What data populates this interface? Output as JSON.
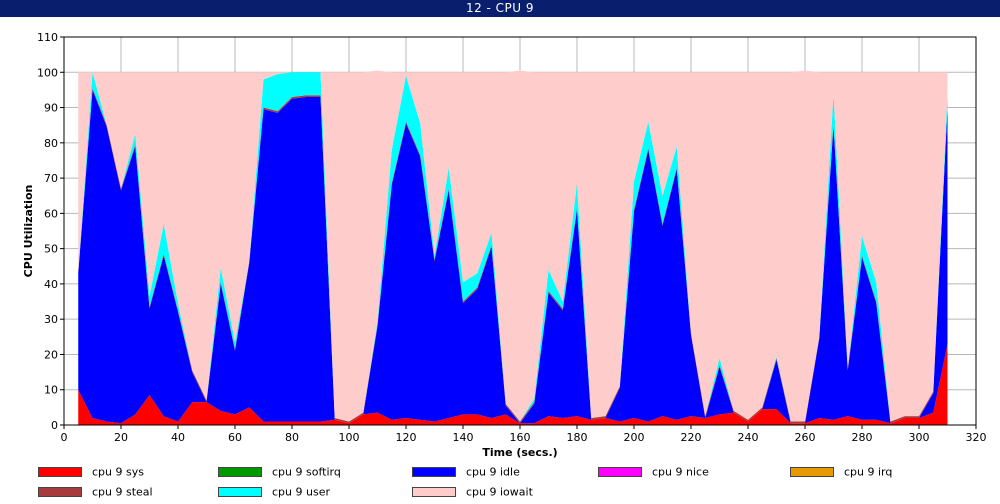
{
  "window": {
    "title": "12 - CPU 9"
  },
  "chart_data": {
    "type": "area",
    "stacked": true,
    "xlabel": "Time (secs.)",
    "ylabel": "CPU Utilization",
    "xlim": [
      0,
      320
    ],
    "ylim": [
      0,
      110
    ],
    "xticks": [
      0,
      20,
      40,
      60,
      80,
      100,
      120,
      140,
      160,
      180,
      200,
      220,
      240,
      260,
      280,
      300,
      320
    ],
    "yticks": [
      0,
      10,
      20,
      30,
      40,
      50,
      60,
      70,
      80,
      90,
      100,
      110
    ],
    "grid": true,
    "legend_position": "bottom",
    "x": [
      5,
      10,
      15,
      20,
      25,
      30,
      35,
      40,
      45,
      50,
      55,
      60,
      65,
      70,
      75,
      80,
      85,
      90,
      95,
      100,
      105,
      110,
      115,
      120,
      125,
      130,
      135,
      140,
      145,
      150,
      155,
      160,
      165,
      170,
      175,
      180,
      185,
      190,
      195,
      200,
      205,
      210,
      215,
      220,
      225,
      230,
      235,
      240,
      245,
      250,
      255,
      260,
      265,
      270,
      275,
      280,
      285,
      290,
      295,
      300,
      305,
      310
    ],
    "series": [
      {
        "name": "cpu 9 sys",
        "color": "#ff0000",
        "values": [
          10,
          2,
          1,
          0.5,
          3,
          8.5,
          2.5,
          1,
          6.5,
          6.5,
          4,
          3,
          5,
          1,
          1,
          1,
          1,
          1,
          1.5,
          0.5,
          3,
          3.5,
          1.5,
          2,
          1.5,
          1,
          2,
          3,
          3,
          2,
          3,
          0.5,
          0.5,
          2.5,
          2,
          2.5,
          1.5,
          2,
          1,
          2,
          1,
          2.5,
          1.5,
          2.5,
          2,
          3,
          3.5,
          1,
          4.5,
          4.5,
          0.5,
          0.5,
          2,
          1.5,
          2.5,
          1.5,
          1.5,
          0.5,
          2,
          2,
          3.5,
          23
        ]
      },
      {
        "name": "cpu 9 softirq",
        "color": "#009900",
        "values": [
          0,
          0,
          0,
          0,
          0,
          0,
          0,
          0,
          0,
          0,
          0,
          0,
          0,
          0,
          0,
          0,
          0,
          0,
          0,
          0,
          0,
          0,
          0,
          0,
          0,
          0,
          0,
          0,
          0,
          0,
          0,
          0,
          0,
          0,
          0,
          0,
          0,
          0,
          0,
          0,
          0,
          0,
          0,
          0,
          0,
          0,
          0,
          0,
          0,
          0,
          0,
          0,
          0,
          0,
          0,
          0,
          0,
          0,
          0,
          0,
          0,
          0
        ]
      },
      {
        "name": "cpu 9 idle",
        "color": "#0000ff",
        "values": [
          33,
          93,
          83.5,
          66,
          76,
          24.5,
          45.5,
          31,
          8.5,
          0,
          36,
          18,
          41,
          88.5,
          87.5,
          91.5,
          92,
          92,
          0,
          0,
          0,
          24.5,
          66.5,
          83.5,
          74.5,
          45.5,
          64.5,
          31.5,
          35.5,
          48.5,
          2.5,
          0,
          5.5,
          35,
          30.5,
          58.5,
          0,
          0,
          9.5,
          58.5,
          77,
          54,
          71,
          23,
          0,
          13.5,
          0,
          0,
          0,
          14,
          0,
          0,
          22.5,
          83.5,
          13,
          46,
          33,
          0,
          0,
          0,
          5.5,
          67
        ]
      },
      {
        "name": "cpu 9 nice",
        "color": "#ff00ff",
        "values": [
          0,
          0,
          0,
          0,
          0,
          0,
          0,
          0,
          0,
          0,
          0,
          0,
          0,
          0,
          0,
          0,
          0,
          0,
          0,
          0,
          0,
          0,
          0,
          0,
          0,
          0,
          0,
          0,
          0,
          0,
          0,
          0,
          0,
          0,
          0,
          0,
          0,
          0,
          0,
          0,
          0,
          0,
          0,
          0,
          0,
          0,
          0,
          0,
          0,
          0,
          0,
          0,
          0,
          0,
          0,
          0,
          0,
          0,
          0,
          0,
          0,
          0
        ]
      },
      {
        "name": "cpu 9 irq",
        "color": "#e69900",
        "values": [
          0,
          0,
          0,
          0,
          0,
          0,
          0,
          0,
          0,
          0,
          0,
          0,
          0,
          0,
          0,
          0,
          0,
          0,
          0,
          0,
          0,
          0,
          0,
          0,
          0,
          0,
          0,
          0,
          0,
          0,
          0,
          0,
          0,
          0,
          0,
          0,
          0,
          0,
          0,
          0,
          0,
          0,
          0,
          0,
          0,
          0,
          0,
          0,
          0,
          0,
          0,
          0,
          0,
          0,
          0,
          0,
          0,
          0,
          0,
          0,
          0,
          0
        ]
      },
      {
        "name": "cpu 9 steal",
        "color": "#a83c3c",
        "values": [
          0.5,
          0.5,
          0.5,
          0.5,
          0.5,
          0.5,
          0.5,
          0.5,
          0.5,
          0.5,
          0.5,
          0.5,
          0.5,
          0.5,
          0.5,
          0.5,
          0.5,
          0.5,
          0.5,
          0.5,
          0.5,
          0.5,
          0.5,
          0.5,
          0.5,
          0.5,
          0.5,
          0.5,
          0.5,
          0.5,
          0.5,
          0.5,
          0.5,
          0.5,
          0.5,
          0.5,
          0.5,
          0.5,
          0.5,
          0.5,
          0.5,
          0.5,
          0.5,
          0.5,
          0.5,
          0.5,
          0.5,
          0.5,
          0.5,
          0.5,
          0.5,
          0.5,
          0.5,
          0.5,
          0.5,
          0.5,
          0.5,
          0.5,
          0.5,
          0.5,
          0.5,
          0.5
        ]
      },
      {
        "name": "cpu 9 user",
        "color": "#00ffff",
        "values": [
          0,
          4.5,
          0,
          0,
          3,
          3,
          8.5,
          2,
          0,
          0,
          4,
          2,
          0,
          8,
          10.5,
          7,
          6.5,
          6.5,
          0,
          0,
          0,
          1,
          9.5,
          13,
          9,
          1,
          6,
          5.5,
          4,
          3.5,
          0,
          0,
          1,
          6,
          2,
          7,
          0,
          0,
          0,
          8,
          7.5,
          8,
          6,
          0,
          0,
          2,
          0,
          0,
          0,
          0.5,
          0,
          0,
          0,
          8.5,
          0,
          5.5,
          5.5,
          0,
          0,
          0,
          0,
          3.5
        ]
      },
      {
        "name": "cpu 9 iowait",
        "color": "#ffcccc",
        "values": [
          56.5,
          0,
          15,
          33,
          17.5,
          63.5,
          43,
          65.5,
          84.5,
          93,
          55.5,
          76.5,
          53.5,
          2,
          0.5,
          0,
          0,
          0,
          98,
          99,
          96.5,
          71,
          22,
          1,
          14.5,
          52,
          27,
          59.5,
          57,
          45.5,
          94,
          99.5,
          92.5,
          56,
          65,
          31.5,
          98,
          97.5,
          89,
          31,
          14,
          35,
          21,
          74,
          97.5,
          81,
          96,
          98.5,
          95,
          80.5,
          99,
          99.5,
          75,
          6,
          84,
          46.5,
          59.5,
          99,
          97.5,
          97.5,
          90.5,
          6
        ]
      }
    ]
  }
}
